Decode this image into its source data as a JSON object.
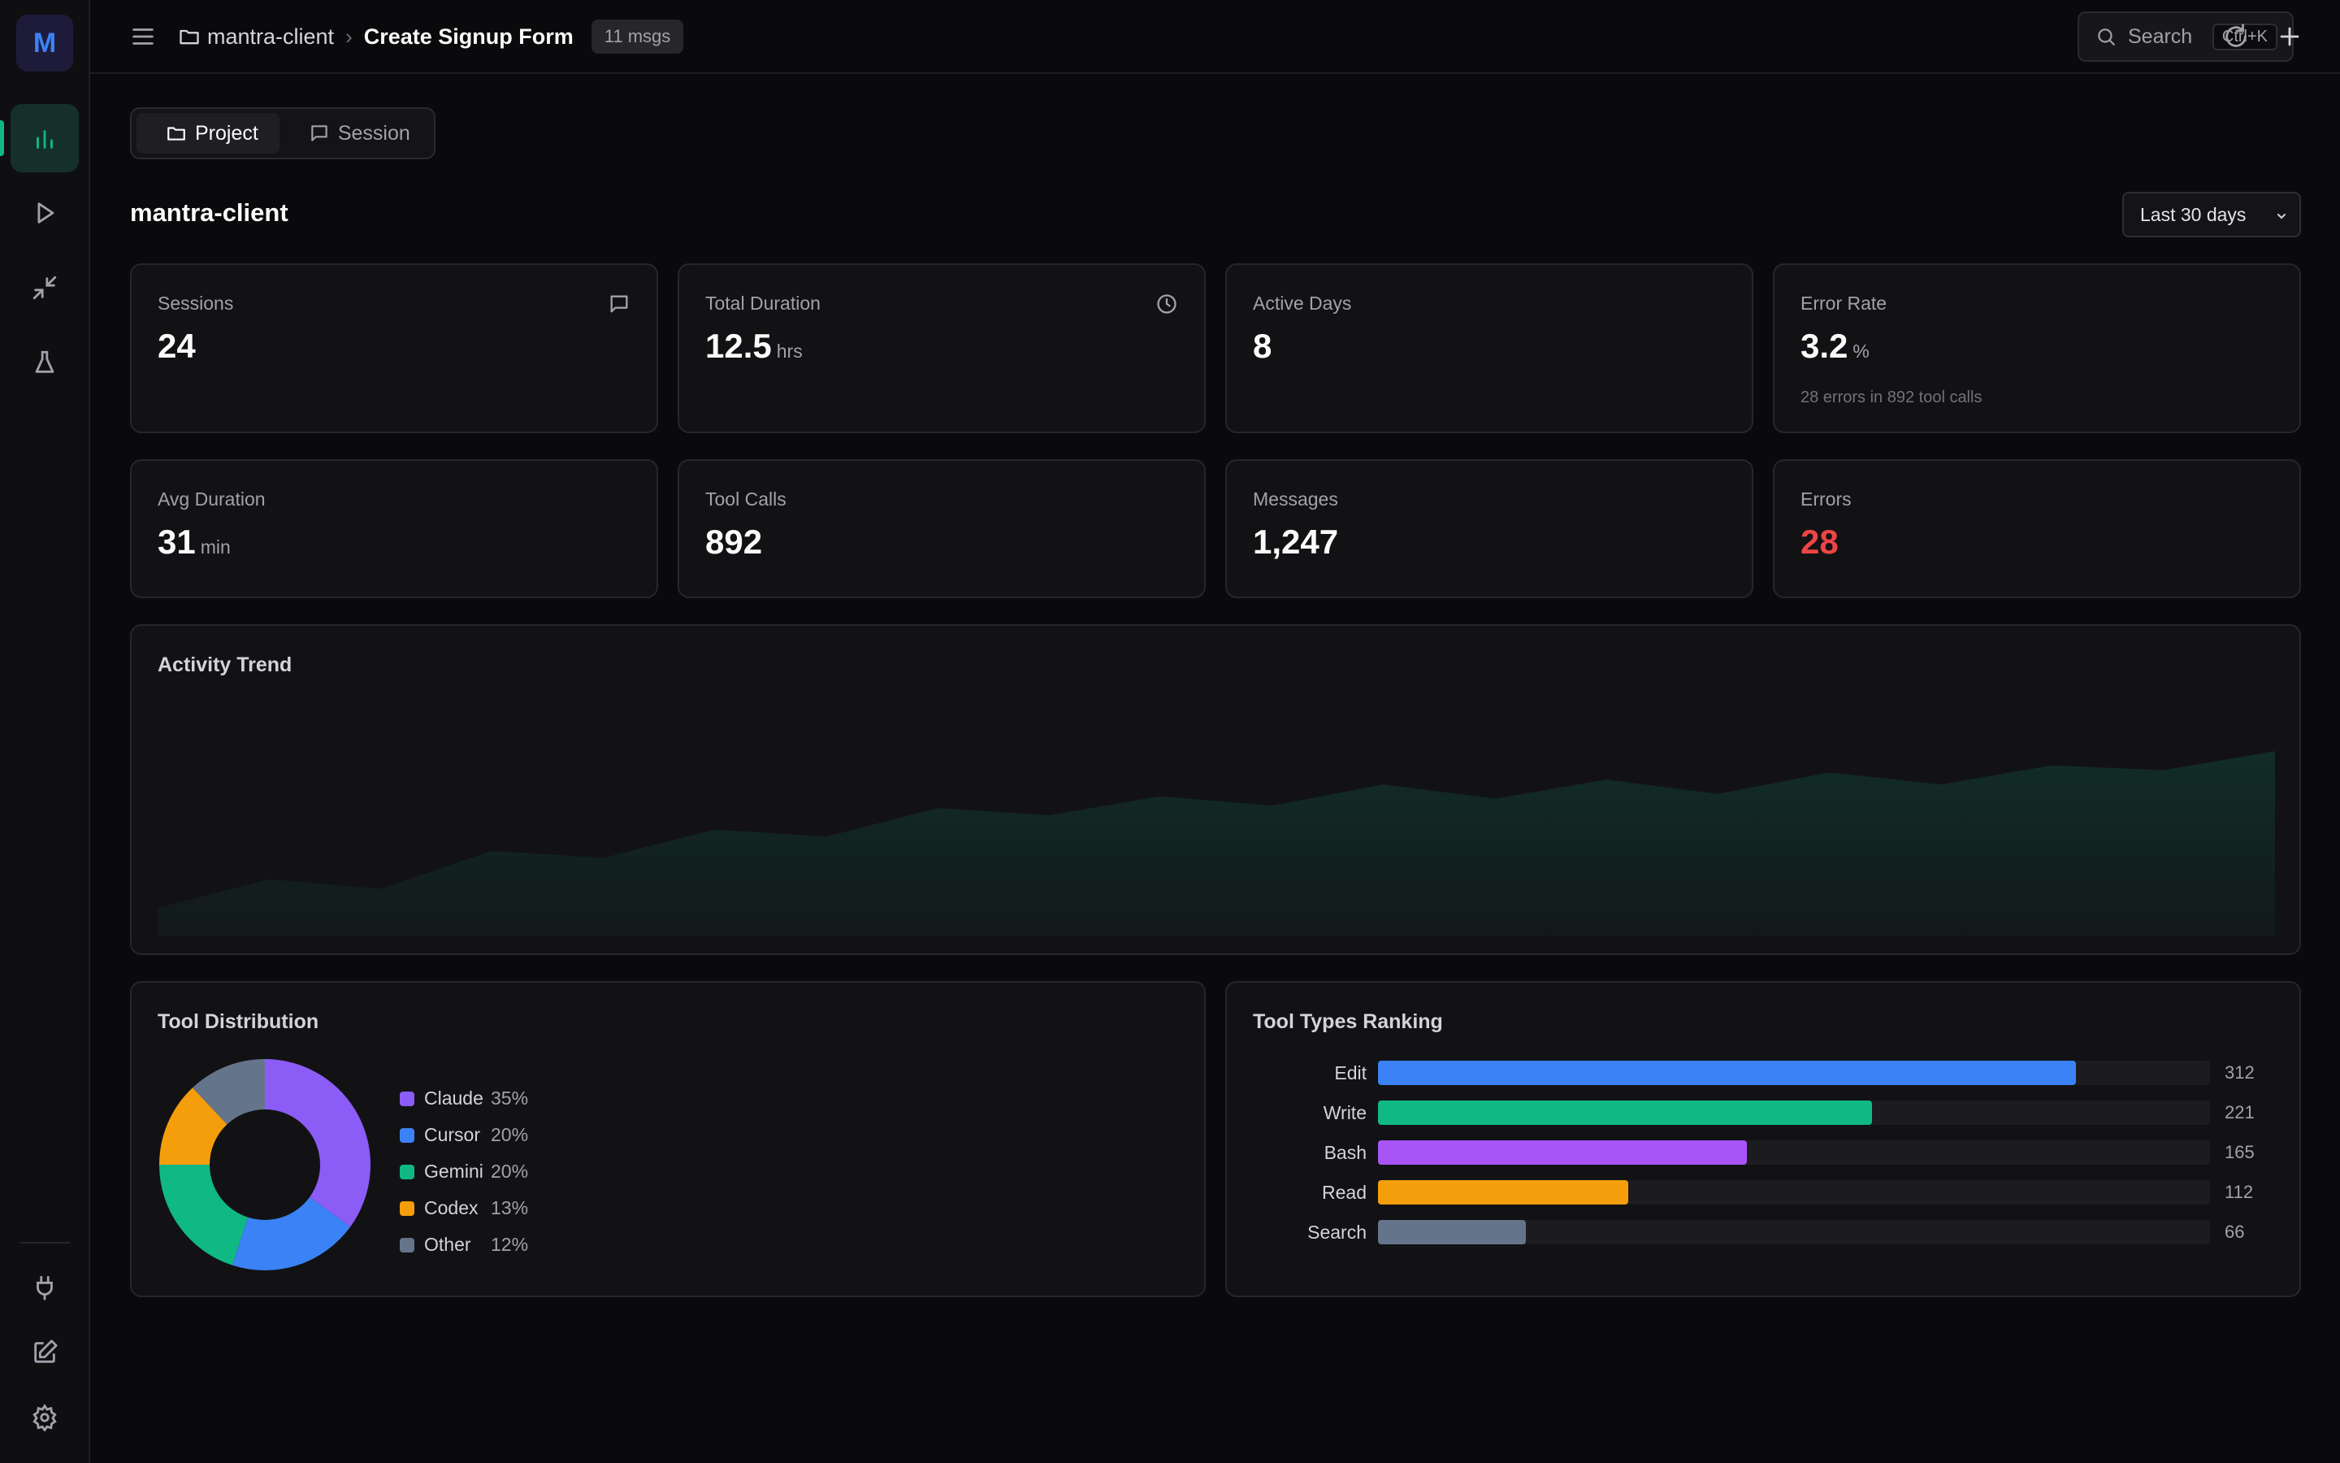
{
  "app": {
    "logo_letter": "M"
  },
  "header": {
    "project": "mantra-client",
    "session_title": "Create Signup Form",
    "msgs_badge": "11 msgs",
    "search_label": "Search",
    "search_shortcut": "Ctrl+K"
  },
  "tabs": [
    {
      "label": "Project",
      "active": true
    },
    {
      "label": "Session",
      "active": false
    }
  ],
  "page": {
    "title": "mantra-client",
    "range": "Last 30 days"
  },
  "stats": {
    "sessions": {
      "label": "Sessions",
      "value": "24"
    },
    "total_duration": {
      "label": "Total Duration",
      "value": "12.5",
      "unit": "hrs"
    },
    "active_days": {
      "label": "Active Days",
      "value": "8"
    },
    "error_rate": {
      "label": "Error Rate",
      "value": "3.2",
      "unit": "%",
      "sub": "28 errors in 892 tool calls"
    },
    "avg_duration": {
      "label": "Avg Duration",
      "value": "31",
      "unit": "min"
    },
    "tool_calls": {
      "label": "Tool Calls",
      "value": "892"
    },
    "messages": {
      "label": "Messages",
      "value": "1,247"
    },
    "errors": {
      "label": "Errors",
      "value": "28",
      "color": "#ef4444"
    }
  },
  "activity": {
    "title": "Activity Trend",
    "fill_color": "#10b981",
    "values": [
      12,
      24,
      20,
      36,
      33,
      45,
      42,
      54,
      51,
      59,
      55,
      64,
      58,
      66,
      60,
      69,
      64,
      72,
      70,
      78
    ]
  },
  "distribution": {
    "title": "Tool Distribution",
    "items": [
      {
        "name": "Claude",
        "pct": "35%",
        "value": 35,
        "color": "#8b5cf6"
      },
      {
        "name": "Cursor",
        "pct": "20%",
        "value": 20,
        "color": "#3b82f6"
      },
      {
        "name": "Gemini",
        "pct": "20%",
        "value": 20,
        "color": "#10b981"
      },
      {
        "name": "Codex",
        "pct": "13%",
        "value": 13,
        "color": "#f59e0b"
      },
      {
        "name": "Other",
        "pct": "12%",
        "value": 12,
        "color": "#64748b"
      }
    ]
  },
  "ranking": {
    "title": "Tool Types Ranking",
    "max": 372,
    "items": [
      {
        "label": "Edit",
        "value": 312,
        "display": "312",
        "color": "#3b82f6"
      },
      {
        "label": "Write",
        "value": 221,
        "display": "221",
        "color": "#10b981"
      },
      {
        "label": "Bash",
        "value": 165,
        "display": "165",
        "color": "#a855f7"
      },
      {
        "label": "Read",
        "value": 112,
        "display": "112",
        "color": "#f59e0b"
      },
      {
        "label": "Search",
        "value": 66,
        "display": "66",
        "color": "#64748b"
      }
    ]
  }
}
